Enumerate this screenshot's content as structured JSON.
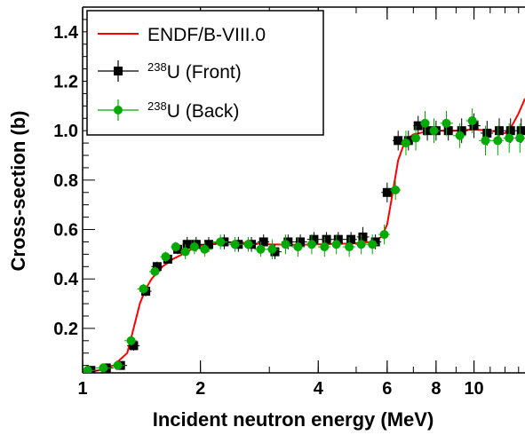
{
  "chart_data": {
    "type": "scatter",
    "xlabel": "Incident neutron energy (MeV)",
    "ylabel": "Cross-section (b)",
    "xscale": "log",
    "xlim": [
      1,
      13.5
    ],
    "ylim": [
      0.02,
      1.5
    ],
    "x_ticks": [
      1,
      2,
      4,
      6,
      8,
      10
    ],
    "x_tick_labels": [
      "1",
      "2",
      "4",
      "6",
      "8",
      "10"
    ],
    "y_ticks": [
      0.2,
      0.4,
      0.6,
      0.8,
      1.0,
      1.2,
      1.4
    ],
    "y_tick_labels": [
      "0.2",
      "0.4",
      "0.6",
      "0.8",
      "1.0",
      "1.2",
      "1.4"
    ],
    "legend": {
      "position": "top-left",
      "entries": [
        {
          "label": "ENDF/B-VIII.0",
          "color": "#ff0000",
          "marker": "line"
        },
        {
          "label_sup": "238",
          "label": "U (Front)",
          "color": "#000000",
          "marker": "square"
        },
        {
          "label_sup": "238",
          "label": "U (Back)",
          "color": "#00aa00",
          "marker": "circle"
        }
      ]
    },
    "series": [
      {
        "name": "ENDF/B-VIII.0",
        "kind": "line",
        "color": "#ff0000",
        "x": [
          1.0,
          1.1,
          1.2,
          1.3,
          1.35,
          1.4,
          1.45,
          1.5,
          1.6,
          1.7,
          1.8,
          1.9,
          2.0,
          2.2,
          2.4,
          2.7,
          3.0,
          3.5,
          4.0,
          4.5,
          5.0,
          5.5,
          5.8,
          6.0,
          6.2,
          6.4,
          6.6,
          6.8,
          7.0,
          7.5,
          8.0,
          9.0,
          10.0,
          11.0,
          12.0,
          12.5,
          13.0,
          13.5
        ],
        "y": [
          0.02,
          0.03,
          0.05,
          0.1,
          0.2,
          0.3,
          0.36,
          0.4,
          0.45,
          0.48,
          0.5,
          0.52,
          0.535,
          0.545,
          0.548,
          0.545,
          0.54,
          0.538,
          0.54,
          0.542,
          0.545,
          0.55,
          0.57,
          0.62,
          0.75,
          0.88,
          0.94,
          0.97,
          0.985,
          0.995,
          1.0,
          1.0,
          1.005,
          1.0,
          0.99,
          1.02,
          1.07,
          1.13
        ]
      },
      {
        "name": "238U (Front)",
        "kind": "scatter",
        "marker": "square",
        "color": "#000000",
        "x": [
          1.05,
          1.15,
          1.25,
          1.35,
          1.45,
          1.55,
          1.65,
          1.75,
          1.85,
          1.95,
          2.1,
          2.3,
          2.5,
          2.7,
          2.9,
          3.1,
          3.35,
          3.6,
          3.9,
          4.2,
          4.5,
          4.85,
          5.2,
          5.6,
          6.0,
          6.4,
          6.8,
          7.2,
          7.6,
          8.0,
          8.6,
          9.3,
          10.0,
          10.8,
          11.6,
          12.4,
          13.2
        ],
        "y": [
          0.03,
          0.04,
          0.05,
          0.13,
          0.35,
          0.45,
          0.48,
          0.52,
          0.54,
          0.54,
          0.54,
          0.55,
          0.54,
          0.54,
          0.55,
          0.51,
          0.55,
          0.55,
          0.56,
          0.56,
          0.56,
          0.56,
          0.57,
          0.55,
          0.75,
          0.96,
          0.96,
          1.02,
          1.0,
          1.0,
          1.0,
          1.0,
          1.02,
          0.99,
          1.0,
          1.0,
          1.0
        ],
        "yerr": [
          0.01,
          0.01,
          0.01,
          0.02,
          0.02,
          0.02,
          0.02,
          0.02,
          0.03,
          0.03,
          0.03,
          0.03,
          0.03,
          0.03,
          0.03,
          0.03,
          0.03,
          0.03,
          0.03,
          0.03,
          0.03,
          0.03,
          0.04,
          0.03,
          0.04,
          0.04,
          0.04,
          0.04,
          0.04,
          0.04,
          0.04,
          0.05,
          0.05,
          0.05,
          0.05,
          0.05,
          0.05
        ]
      },
      {
        "name": "238U (Back)",
        "kind": "scatter",
        "marker": "circle",
        "color": "#00aa00",
        "x": [
          1.03,
          1.13,
          1.23,
          1.33,
          1.43,
          1.53,
          1.63,
          1.73,
          1.83,
          1.93,
          2.05,
          2.25,
          2.45,
          2.65,
          2.85,
          3.05,
          3.3,
          3.55,
          3.85,
          4.15,
          4.45,
          4.8,
          5.15,
          5.5,
          5.9,
          6.3,
          6.7,
          7.1,
          7.5,
          7.9,
          8.5,
          9.2,
          9.9,
          10.7,
          11.5,
          12.3,
          13.1
        ],
        "y": [
          0.03,
          0.04,
          0.05,
          0.15,
          0.36,
          0.43,
          0.49,
          0.53,
          0.51,
          0.53,
          0.52,
          0.55,
          0.54,
          0.54,
          0.52,
          0.52,
          0.54,
          0.53,
          0.54,
          0.53,
          0.54,
          0.53,
          0.54,
          0.54,
          0.58,
          0.76,
          0.95,
          0.97,
          1.03,
          1.0,
          1.03,
          0.98,
          1.04,
          0.96,
          0.96,
          0.97,
          0.97
        ],
        "yerr": [
          0.01,
          0.01,
          0.01,
          0.02,
          0.02,
          0.02,
          0.02,
          0.02,
          0.03,
          0.03,
          0.03,
          0.03,
          0.03,
          0.03,
          0.03,
          0.04,
          0.04,
          0.04,
          0.04,
          0.04,
          0.04,
          0.04,
          0.04,
          0.04,
          0.04,
          0.04,
          0.05,
          0.05,
          0.05,
          0.05,
          0.05,
          0.05,
          0.05,
          0.06,
          0.06,
          0.06,
          0.06
        ]
      }
    ]
  }
}
